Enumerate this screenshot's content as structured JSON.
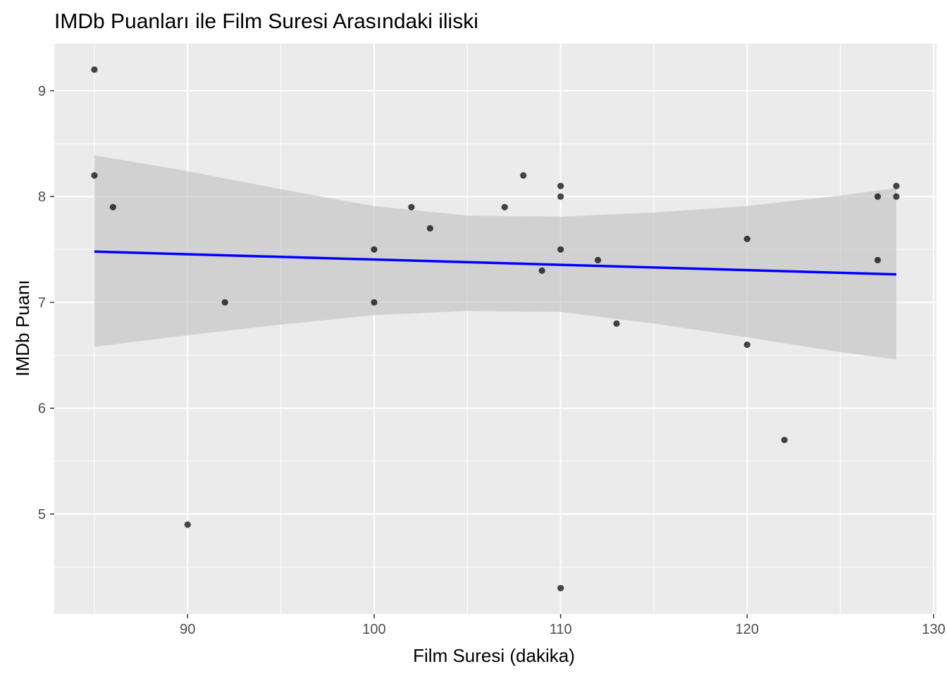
{
  "chart_data": {
    "type": "scatter",
    "title": "IMDb Puanları ile Film Suresi Arasındaki iliski",
    "xlabel": "Film Suresi (dakika)",
    "ylabel": "IMDb Puanı",
    "xlim": [
      82.85,
      130.15
    ],
    "ylim": [
      4.055,
      9.445
    ],
    "x_ticks": [
      90,
      100,
      110,
      120,
      130
    ],
    "y_ticks": [
      5,
      6,
      7,
      8,
      9
    ],
    "grid": true,
    "legend": "none",
    "points": [
      {
        "x": 85,
        "y": 9.2
      },
      {
        "x": 85,
        "y": 8.2
      },
      {
        "x": 86,
        "y": 7.9
      },
      {
        "x": 90,
        "y": 4.9
      },
      {
        "x": 92,
        "y": 7.0
      },
      {
        "x": 100,
        "y": 7.5
      },
      {
        "x": 100,
        "y": 7.0
      },
      {
        "x": 102,
        "y": 7.9
      },
      {
        "x": 103,
        "y": 7.7
      },
      {
        "x": 107,
        "y": 7.9
      },
      {
        "x": 108,
        "y": 8.2
      },
      {
        "x": 109,
        "y": 7.3
      },
      {
        "x": 110,
        "y": 8.1
      },
      {
        "x": 110,
        "y": 8.0
      },
      {
        "x": 110,
        "y": 7.5
      },
      {
        "x": 110,
        "y": 4.3
      },
      {
        "x": 112,
        "y": 7.4
      },
      {
        "x": 113,
        "y": 6.8
      },
      {
        "x": 120,
        "y": 7.6
      },
      {
        "x": 120,
        "y": 6.6
      },
      {
        "x": 122,
        "y": 5.7
      },
      {
        "x": 127,
        "y": 8.0
      },
      {
        "x": 127,
        "y": 7.4
      },
      {
        "x": 128,
        "y": 8.1
      },
      {
        "x": 128,
        "y": 8.0
      }
    ],
    "trend_line": {
      "method": "linear",
      "x": [
        85,
        128
      ],
      "y": [
        7.48,
        7.265
      ]
    },
    "confidence_band": {
      "x": [
        85,
        90,
        95,
        100,
        105,
        110,
        115,
        120,
        125,
        128
      ],
      "upper": [
        8.39,
        8.24,
        8.07,
        7.91,
        7.82,
        7.81,
        7.85,
        7.91,
        8.01,
        8.08
      ],
      "lower": [
        6.58,
        6.69,
        6.79,
        6.88,
        6.92,
        6.91,
        6.8,
        6.67,
        6.53,
        6.46
      ]
    },
    "colors": {
      "panel_background": "#ebebeb",
      "grid": "#ffffff",
      "point": "#000000",
      "line": "#0000ff",
      "band": "#bfbfbf"
    }
  }
}
